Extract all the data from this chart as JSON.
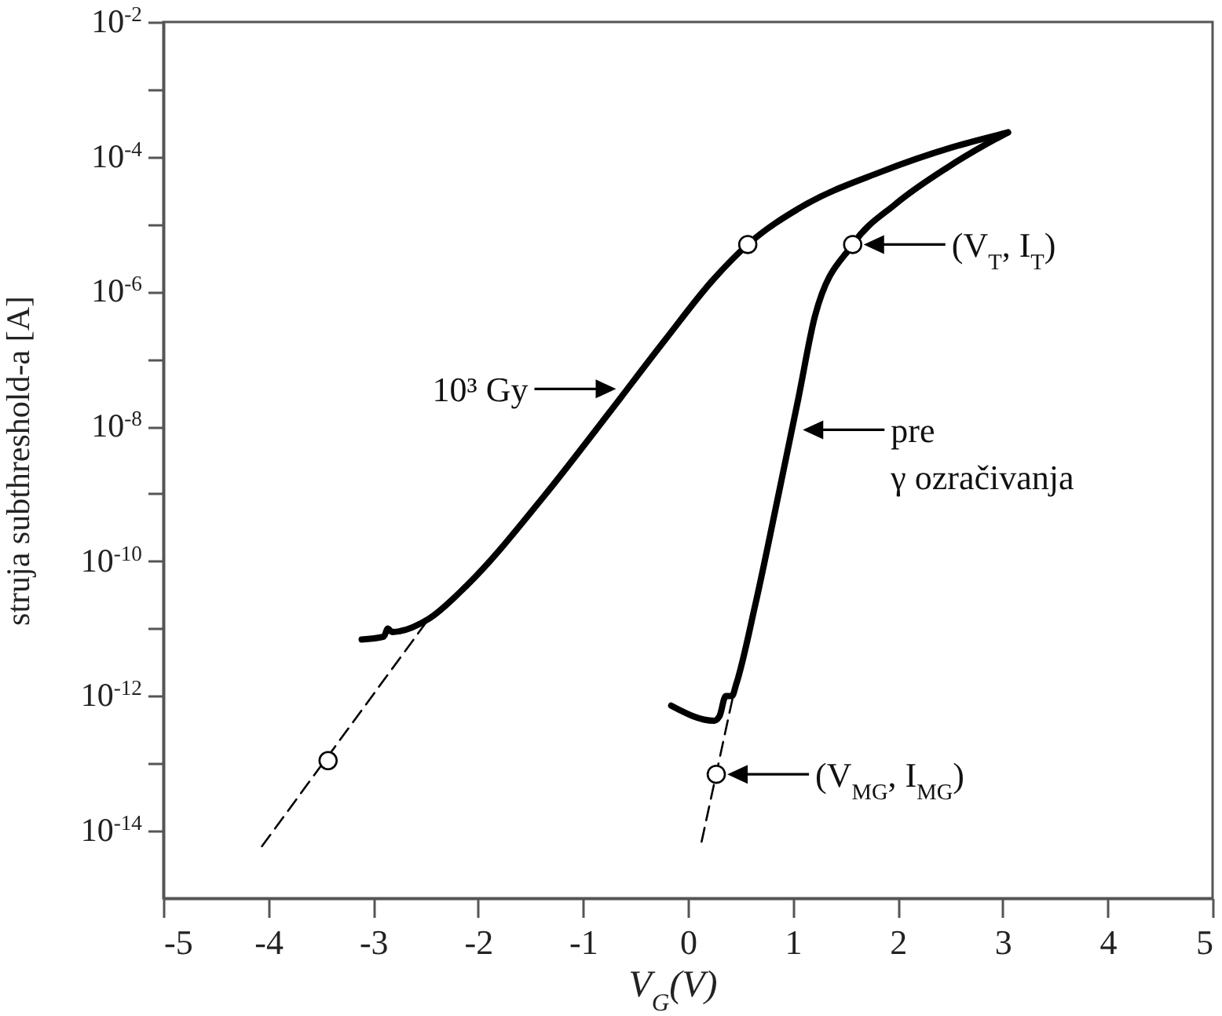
{
  "chart_data": {
    "type": "line",
    "xlabel": "V$_{G}$(V)",
    "ylabel": "struja subthreshold-a [A]",
    "log": "y",
    "grid": false,
    "xlim": [
      -5,
      5
    ],
    "xticks": [
      -5,
      -4,
      -3,
      -2,
      -1,
      0,
      1,
      2,
      3,
      4,
      5
    ],
    "ylim": [
      1e-15,
      0.01
    ],
    "yticks": [
      {
        "value": 0.01,
        "label": "10$^{-2}$"
      },
      {
        "value": 0.001,
        "label": null
      },
      {
        "value": 0.0001,
        "label": "10$^{-4}$"
      },
      {
        "value": 1e-05,
        "label": null
      },
      {
        "value": 1e-06,
        "label": "10$^{-6}$"
      },
      {
        "value": 1e-07,
        "label": null
      },
      {
        "value": 1e-08,
        "label": "10$^{-8}$"
      },
      {
        "value": 1e-09,
        "label": null
      },
      {
        "value": 1e-10,
        "label": "10$^{-10}$"
      },
      {
        "value": 1e-11,
        "label": null
      },
      {
        "value": 1e-12,
        "label": "10$^{-12}$"
      },
      {
        "value": 1e-13,
        "label": null
      },
      {
        "value": 1e-14,
        "label": "10$^{-14}$"
      }
    ],
    "series": [
      {
        "color": "#000000",
        "line_style": "solid",
        "x": [
          -3.11,
          -2.9,
          -2.86,
          -2.82,
          -2.47,
          -2.1,
          -1.38,
          -0.75,
          -0.22,
          0.24,
          0.57,
          1.08,
          1.83,
          2.53,
          3.05
        ],
        "values": [
          6.9e-12,
          7.6e-12,
          1e-11,
          8.9e-12,
          1.4e-11,
          4.5e-11,
          8.9e-10,
          1.6e-08,
          1.9e-07,
          1.5e-06,
          5e-06,
          1.8e-05,
          5.9e-05,
          0.00014,
          0.00023
        ]
      },
      {
        "color": "#000000",
        "line_style": "solid",
        "x": [
          -0.16,
          0.25,
          0.3,
          0.36,
          0.42,
          0.46,
          0.64,
          0.87,
          1.05,
          1.21,
          1.57,
          1.98,
          2.47,
          2.83,
          3.05
        ],
        "values": [
          7.2e-13,
          4.3e-13,
          5e-13,
          1e-12,
          1e-12,
          1.5e-12,
          2.2e-11,
          1.1e-09,
          2.5e-08,
          4.3e-07,
          5e-06,
          2e-05,
          6.9e-05,
          0.00015,
          0.00023
        ]
      },
      {
        "color": "#000000",
        "line_style": "dashed",
        "x": [
          -4.06,
          -2.47
        ],
        "values": [
          5.9e-15,
          1.4e-11
        ]
      },
      {
        "color": "#000000",
        "line_style": "dashed",
        "x": [
          0.13,
          0.43
        ],
        "values": [
          6.9e-15,
          1e-12
        ]
      },
      {
        "type": "scatter",
        "color": "#ffffff",
        "marker": "circle",
        "x": [
          0.57,
          1.57,
          -3.43,
          0.27
        ],
        "values": [
          5e-06,
          5e-06,
          1.1e-13,
          6.9e-14
        ]
      }
    ],
    "annotations": [
      {
        "text": "10³ Gy",
        "x": -0.58,
        "y": 3.6e-08
      },
      {
        "text": "(V$_{T}$, I$_{T}$)",
        "x": 1.57,
        "y": 5e-06
      },
      {
        "text": "pre\nγ ozračivanja",
        "x": 0.99,
        "y": 8.9e-09
      },
      {
        "text": "(V$_{MG}$, I$_{MG}$)",
        "x": 0.27,
        "y": 6.9e-14
      }
    ]
  }
}
